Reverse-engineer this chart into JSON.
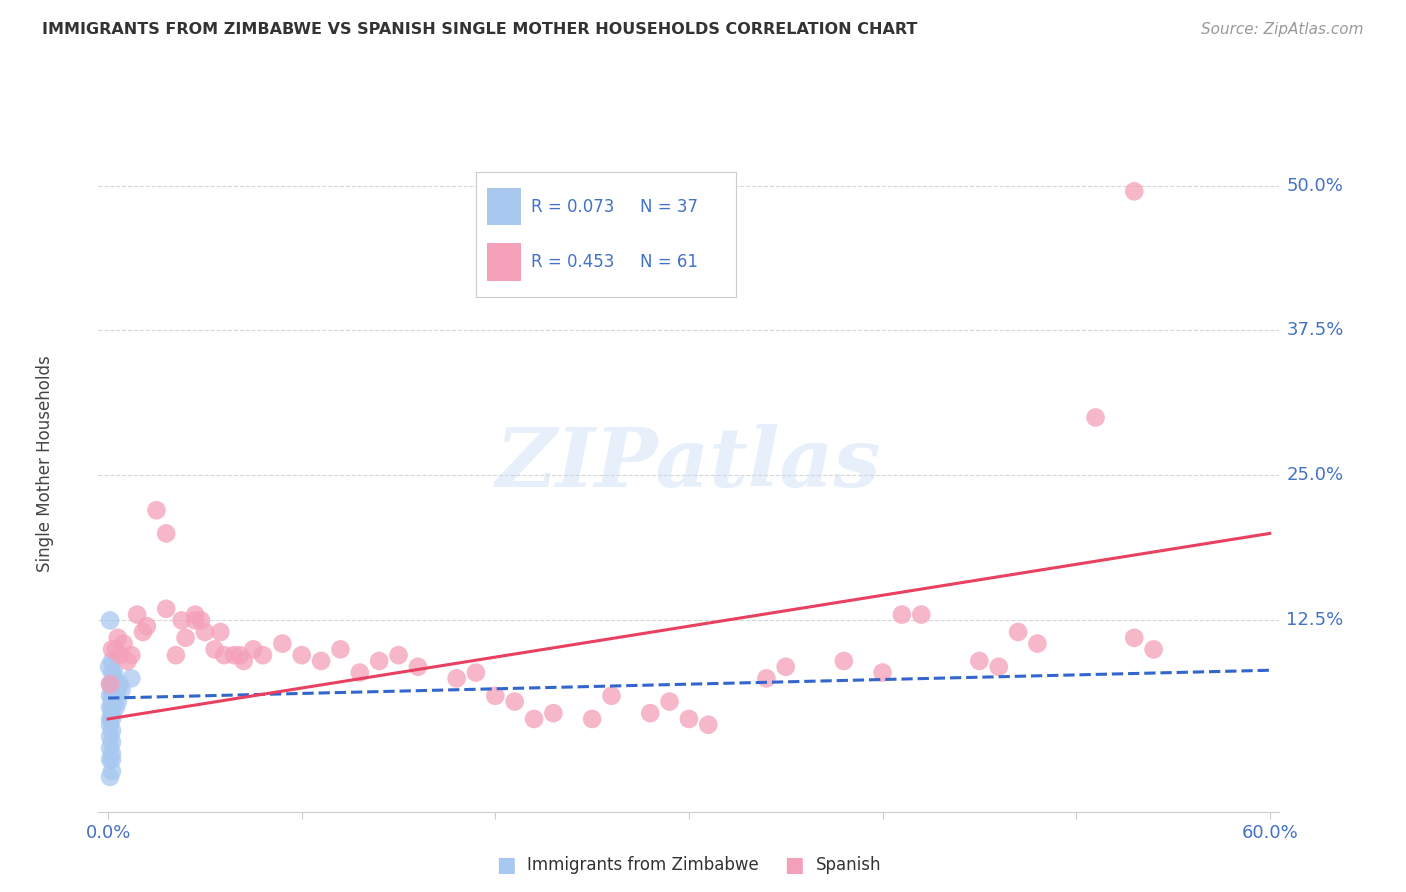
{
  "title": "IMMIGRANTS FROM ZIMBABWE VS SPANISH SINGLE MOTHER HOUSEHOLDS CORRELATION CHART",
  "source": "Source: ZipAtlas.com",
  "ylabel": "Single Mother Households",
  "yticks": [
    "50.0%",
    "37.5%",
    "25.0%",
    "12.5%"
  ],
  "ytick_vals": [
    0.5,
    0.375,
    0.25,
    0.125
  ],
  "xlim": [
    0.0,
    0.6
  ],
  "ylim": [
    -0.04,
    0.56
  ],
  "legend1_R": "0.073",
  "legend1_N": "37",
  "legend2_R": "0.453",
  "legend2_N": "61",
  "blue_color": "#A8C8F0",
  "pink_color": "#F4A0B8",
  "blue_line_color": "#3366CC",
  "pink_line_color": "#E84060",
  "blue_scatter": [
    [
      0.0005,
      0.085
    ],
    [
      0.001,
      0.125
    ],
    [
      0.001,
      0.07
    ],
    [
      0.001,
      0.06
    ],
    [
      0.001,
      0.05
    ],
    [
      0.001,
      0.04
    ],
    [
      0.001,
      0.035
    ],
    [
      0.001,
      0.025
    ],
    [
      0.001,
      0.015
    ],
    [
      0.001,
      0.005
    ],
    [
      0.001,
      -0.01
    ],
    [
      0.002,
      0.09
    ],
    [
      0.002,
      0.08
    ],
    [
      0.002,
      0.07
    ],
    [
      0.002,
      0.065
    ],
    [
      0.002,
      0.06
    ],
    [
      0.002,
      0.055
    ],
    [
      0.002,
      0.05
    ],
    [
      0.002,
      0.045
    ],
    [
      0.002,
      0.04
    ],
    [
      0.002,
      0.03
    ],
    [
      0.002,
      0.02
    ],
    [
      0.002,
      0.01
    ],
    [
      0.002,
      0.005
    ],
    [
      0.002,
      -0.005
    ],
    [
      0.003,
      0.08
    ],
    [
      0.003,
      0.075
    ],
    [
      0.003,
      0.065
    ],
    [
      0.003,
      0.06
    ],
    [
      0.004,
      0.07
    ],
    [
      0.004,
      0.06
    ],
    [
      0.004,
      0.05
    ],
    [
      0.005,
      0.065
    ],
    [
      0.005,
      0.055
    ],
    [
      0.006,
      0.07
    ],
    [
      0.007,
      0.065
    ],
    [
      0.012,
      0.075
    ]
  ],
  "pink_scatter": [
    [
      0.001,
      0.07
    ],
    [
      0.002,
      0.1
    ],
    [
      0.004,
      0.1
    ],
    [
      0.005,
      0.11
    ],
    [
      0.006,
      0.095
    ],
    [
      0.008,
      0.105
    ],
    [
      0.01,
      0.09
    ],
    [
      0.012,
      0.095
    ],
    [
      0.015,
      0.13
    ],
    [
      0.018,
      0.115
    ],
    [
      0.02,
      0.12
    ],
    [
      0.025,
      0.22
    ],
    [
      0.03,
      0.2
    ],
    [
      0.03,
      0.135
    ],
    [
      0.035,
      0.095
    ],
    [
      0.038,
      0.125
    ],
    [
      0.04,
      0.11
    ],
    [
      0.045,
      0.13
    ],
    [
      0.045,
      0.125
    ],
    [
      0.048,
      0.125
    ],
    [
      0.05,
      0.115
    ],
    [
      0.055,
      0.1
    ],
    [
      0.058,
      0.115
    ],
    [
      0.06,
      0.095
    ],
    [
      0.065,
      0.095
    ],
    [
      0.068,
      0.095
    ],
    [
      0.07,
      0.09
    ],
    [
      0.075,
      0.1
    ],
    [
      0.08,
      0.095
    ],
    [
      0.09,
      0.105
    ],
    [
      0.1,
      0.095
    ],
    [
      0.11,
      0.09
    ],
    [
      0.12,
      0.1
    ],
    [
      0.13,
      0.08
    ],
    [
      0.14,
      0.09
    ],
    [
      0.15,
      0.095
    ],
    [
      0.16,
      0.085
    ],
    [
      0.18,
      0.075
    ],
    [
      0.19,
      0.08
    ],
    [
      0.2,
      0.06
    ],
    [
      0.21,
      0.055
    ],
    [
      0.22,
      0.04
    ],
    [
      0.23,
      0.045
    ],
    [
      0.25,
      0.04
    ],
    [
      0.26,
      0.06
    ],
    [
      0.28,
      0.045
    ],
    [
      0.29,
      0.055
    ],
    [
      0.3,
      0.04
    ],
    [
      0.31,
      0.035
    ],
    [
      0.34,
      0.075
    ],
    [
      0.35,
      0.085
    ],
    [
      0.38,
      0.09
    ],
    [
      0.4,
      0.08
    ],
    [
      0.41,
      0.13
    ],
    [
      0.42,
      0.13
    ],
    [
      0.45,
      0.09
    ],
    [
      0.46,
      0.085
    ],
    [
      0.47,
      0.115
    ],
    [
      0.48,
      0.105
    ],
    [
      0.51,
      0.3
    ],
    [
      0.53,
      0.495
    ],
    [
      0.53,
      0.11
    ],
    [
      0.54,
      0.1
    ]
  ],
  "background_color": "#FFFFFF",
  "grid_color": "#CCCCCC",
  "title_color": "#333333",
  "label_color": "#4472C4",
  "source_color": "#999999"
}
